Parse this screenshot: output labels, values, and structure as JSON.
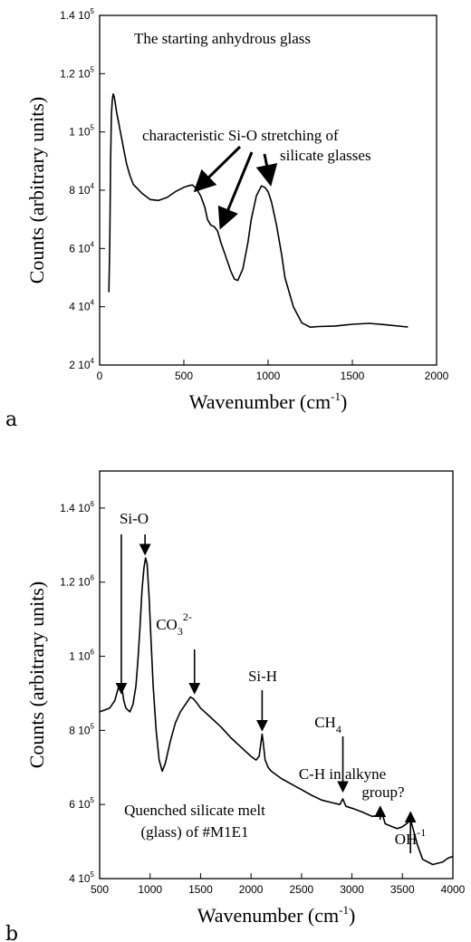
{
  "chart_data": [
    {
      "panel_label": "a",
      "type": "line",
      "title": "The starting anhydrous glass",
      "xlabel": "Wavenumber (cm",
      "xlabel_sup": "-1",
      "xlabel_tail": ")",
      "ylabel": "Counts (arbitrary units)",
      "xlim": [
        0,
        2000
      ],
      "ylim": [
        20000,
        140000
      ],
      "xticks": [
        {
          "value": 0,
          "label": "0"
        },
        {
          "value": 500,
          "label": "500"
        },
        {
          "value": 1000,
          "label": "1000"
        },
        {
          "value": 1500,
          "label": "1500"
        },
        {
          "value": 2000,
          "label": "2000"
        }
      ],
      "yticks": [
        {
          "value": 20000,
          "base": "2 10",
          "exp": "4"
        },
        {
          "value": 40000,
          "base": "4 10",
          "exp": "4"
        },
        {
          "value": 60000,
          "base": "6 10",
          "exp": "4"
        },
        {
          "value": 80000,
          "base": "8 10",
          "exp": "4"
        },
        {
          "value": 100000,
          "base": "1 10",
          "exp": "5"
        },
        {
          "value": 120000,
          "base": "1.2 10",
          "exp": "5"
        },
        {
          "value": 140000,
          "base": "1.4 10",
          "exp": "5"
        }
      ],
      "annotation": {
        "line1": "characteristic Si-O stretching of",
        "line2": "silicate glasses",
        "arrow_targets_x": [
          545,
          680,
          980
        ]
      },
      "series": [
        {
          "x": [
            55,
            60,
            65,
            70,
            75,
            80,
            85,
            90,
            95,
            100,
            110,
            120,
            130,
            140,
            160,
            180,
            200,
            250,
            300,
            350,
            400,
            450,
            500,
            525,
            550,
            575,
            600,
            625,
            640,
            660,
            680,
            700,
            720,
            750,
            780,
            800,
            820,
            850,
            880,
            900,
            930,
            960,
            980,
            1000,
            1020,
            1050,
            1080,
            1100,
            1150,
            1200,
            1250,
            1300,
            1400,
            1500,
            1600,
            1700,
            1800,
            1830
          ],
          "y": [
            45000,
            62000,
            90000,
            106000,
            111000,
            113000,
            112500,
            111000,
            109000,
            107000,
            104000,
            101000,
            98000,
            95000,
            89000,
            85000,
            82000,
            79000,
            76800,
            76500,
            77500,
            79500,
            81000,
            81500,
            81800,
            80500,
            78000,
            74000,
            70000,
            68000,
            67500,
            66000,
            62000,
            57000,
            52000,
            49500,
            49000,
            53000,
            62000,
            70000,
            78000,
            81500,
            81000,
            79500,
            76000,
            68000,
            58000,
            50000,
            40000,
            34500,
            33000,
            33200,
            33400,
            34000,
            34300,
            33800,
            33200,
            33100
          ]
        }
      ]
    },
    {
      "panel_label": "b",
      "type": "line",
      "title": "",
      "xlabel": "Wavenumber (cm",
      "xlabel_sup": "-1",
      "xlabel_tail": ")",
      "ylabel": "Counts (arbitrary units)",
      "xlim": [
        500,
        4000
      ],
      "ylim": [
        400000,
        1500000
      ],
      "xticks": [
        {
          "value": 500,
          "label": "500"
        },
        {
          "value": 1000,
          "label": "1000"
        },
        {
          "value": 1500,
          "label": "1500"
        },
        {
          "value": 2000,
          "label": "2000"
        },
        {
          "value": 2500,
          "label": "2500"
        },
        {
          "value": 3000,
          "label": "3000"
        },
        {
          "value": 3500,
          "label": "3500"
        },
        {
          "value": 4000,
          "label": "4000"
        }
      ],
      "yticks": [
        {
          "value": 400000,
          "base": "4 10",
          "exp": "5"
        },
        {
          "value": 600000,
          "base": "6 10",
          "exp": "5"
        },
        {
          "value": 800000,
          "base": "8 10",
          "exp": "5"
        },
        {
          "value": 1000000,
          "base": "1 10",
          "exp": "6"
        },
        {
          "value": 1200000,
          "base": "1.2 10",
          "exp": "6"
        },
        {
          "value": 1400000,
          "base": "1.4 10",
          "exp": "6"
        }
      ],
      "caption_line1": "Quenched silicate melt",
      "caption_line2": "(glass) of  #M1E1",
      "annotations": [
        {
          "label": "Si-O",
          "sub": "",
          "sup": "",
          "x": 715,
          "arrow_to_x": 715,
          "arrow_to_y": 890000
        },
        {
          "label": "",
          "sub": "",
          "sup": "",
          "x": 950,
          "arrow_to_x": 950,
          "arrow_to_y": 1265000
        },
        {
          "label": "CO",
          "sub": "3",
          "sup": "2-",
          "x": 1440,
          "arrow_to_x": 1440,
          "arrow_to_y": 890000
        },
        {
          "label": "Si-H",
          "sub": "",
          "sup": "",
          "x": 2110,
          "arrow_to_x": 2110,
          "arrow_to_y": 790000
        },
        {
          "label": "CH",
          "sub": "4",
          "sup": "",
          "x": 2910,
          "arrow_to_x": 2910,
          "arrow_to_y": 625000
        },
        {
          "label": "C-H in alkyne",
          "label2": "group?",
          "sub": "",
          "sup": "",
          "x": 3280,
          "arrow_to_x": 3280,
          "arrow_to_y": 575000
        },
        {
          "label": "OH",
          "sub": "",
          "sup": "-1",
          "x": 3580,
          "arrow_to_x": 3580,
          "arrow_to_y": 560000
        }
      ],
      "series": [
        {
          "x": [
            500,
            550,
            600,
            650,
            680,
            700,
            720,
            740,
            760,
            800,
            830,
            860,
            880,
            900,
            920,
            940,
            955,
            970,
            990,
            1010,
            1030,
            1060,
            1090,
            1120,
            1150,
            1200,
            1250,
            1300,
            1350,
            1400,
            1430,
            1460,
            1500,
            1600,
            1700,
            1800,
            1900,
            2000,
            2050,
            2080,
            2100,
            2110,
            2120,
            2140,
            2170,
            2200,
            2300,
            2400,
            2500,
            2600,
            2700,
            2800,
            2880,
            2910,
            2940,
            3000,
            3100,
            3200,
            3250,
            3280,
            3300,
            3330,
            3400,
            3450,
            3500,
            3550,
            3580,
            3600,
            3650,
            3700,
            3800,
            3900,
            3950,
            4000
          ],
          "y": [
            850000,
            855000,
            860000,
            880000,
            910000,
            925000,
            915000,
            880000,
            860000,
            850000,
            870000,
            920000,
            990000,
            1080000,
            1180000,
            1240000,
            1265000,
            1250000,
            1160000,
            1040000,
            920000,
            800000,
            720000,
            690000,
            710000,
            770000,
            820000,
            850000,
            870000,
            890000,
            885000,
            875000,
            860000,
            835000,
            810000,
            780000,
            755000,
            730000,
            720000,
            730000,
            770000,
            790000,
            770000,
            720000,
            700000,
            690000,
            670000,
            655000,
            640000,
            625000,
            612000,
            605000,
            600000,
            615000,
            595000,
            590000,
            580000,
            568000,
            570000,
            590000,
            575000,
            548000,
            540000,
            535000,
            540000,
            550000,
            560000,
            540000,
            490000,
            452000,
            438000,
            445000,
            455000,
            460000
          ]
        }
      ]
    }
  ]
}
